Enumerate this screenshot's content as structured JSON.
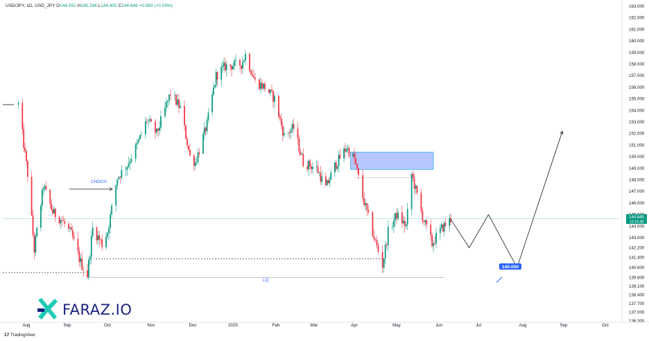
{
  "header": {
    "symbol": "USD/JPY, 1D, USD_JPY",
    "open_label": "O",
    "open": "144.551",
    "high_label": "H",
    "high": "145.294",
    "low_label": "L",
    "low": "144.402",
    "close_label": "C",
    "close": "144.649",
    "change": "+0.083 (+0.05%)"
  },
  "price_badge": {
    "price": "144.649",
    "countdown": "12:15:38"
  },
  "annotations": {
    "choch": "CHOCH",
    "lq": "LQ",
    "target": "140.000"
  },
  "logo": {
    "text": "FARAZ.IO"
  },
  "footer": {
    "brand": "TradingView"
  },
  "colors": {
    "up": "#089981",
    "down": "#f23645",
    "zone_fill": "#9fb3ff",
    "zone_border": "#38b6f2",
    "target_badge": "#2962ff",
    "logo_teal": "#1ec9b5",
    "logo_navy": "#1a237e"
  },
  "chart_data": {
    "type": "candlestick",
    "symbol": "USD/JPY",
    "timeframe": "1D",
    "x_ticks": [
      "Aug",
      "Sep",
      "Oct",
      "Nov",
      "Dec",
      "2025",
      "Feb",
      "Mar",
      "Apr",
      "May",
      "Jun",
      "Jul",
      "Aug",
      "Sep",
      "Oct"
    ],
    "y_ticks": [
      "163.000",
      "162.000",
      "161.000",
      "160.000",
      "159.000",
      "158.000",
      "157.000",
      "156.000",
      "155.000",
      "154.000",
      "153.000",
      "152.000",
      "151.000",
      "150.000",
      "149.000",
      "148.000",
      "147.000",
      "146.000",
      "145.000",
      "144.000",
      "143.000",
      "142.200",
      "141.400",
      "140.600",
      "139.800",
      "139.100",
      "138.400",
      "137.700",
      "137.000",
      "136.300"
    ],
    "ylim": [
      136.3,
      163.0
    ],
    "last_price": 144.649,
    "price_path": [
      [
        "2024-07-26",
        154.5
      ],
      [
        "2024-08-02",
        148.5
      ],
      [
        "2024-08-07",
        142.0
      ],
      [
        "2024-08-14",
        147.5
      ],
      [
        "2024-08-21",
        145.2
      ],
      [
        "2024-08-28",
        144.5
      ],
      [
        "2024-09-04",
        143.3
      ],
      [
        "2024-09-11",
        141.0
      ],
      [
        "2024-09-16",
        140.0
      ],
      [
        "2024-09-20",
        143.8
      ],
      [
        "2024-09-27",
        142.5
      ],
      [
        "2024-10-01",
        143.5
      ],
      [
        "2024-10-08",
        148.2
      ],
      [
        "2024-10-15",
        149.3
      ],
      [
        "2024-10-22",
        151.0
      ],
      [
        "2024-10-29",
        153.2
      ],
      [
        "2024-11-05",
        152.0
      ],
      [
        "2024-11-15",
        155.5
      ],
      [
        "2024-11-22",
        154.2
      ],
      [
        "2024-11-29",
        150.0
      ],
      [
        "2024-12-03",
        149.5
      ],
      [
        "2024-12-12",
        152.8
      ],
      [
        "2024-12-19",
        157.0
      ],
      [
        "2024-12-26",
        157.8
      ],
      [
        "2025-01-07",
        158.0
      ],
      [
        "2025-01-10",
        158.8
      ],
      [
        "2025-01-17",
        156.5
      ],
      [
        "2025-01-24",
        156.0
      ],
      [
        "2025-01-31",
        155.0
      ],
      [
        "2025-02-07",
        151.8
      ],
      [
        "2025-02-14",
        152.5
      ],
      [
        "2025-02-21",
        149.5
      ],
      [
        "2025-03-03",
        149.0
      ],
      [
        "2025-03-10",
        147.3
      ],
      [
        "2025-03-17",
        149.2
      ],
      [
        "2025-03-26",
        150.8
      ],
      [
        "2025-04-01",
        149.8
      ],
      [
        "2025-04-07",
        146.5
      ],
      [
        "2025-04-15",
        143.0
      ],
      [
        "2025-04-21",
        140.8
      ],
      [
        "2025-04-25",
        143.5
      ],
      [
        "2025-05-01",
        145.0
      ],
      [
        "2025-05-08",
        144.0
      ],
      [
        "2025-05-12",
        148.5
      ],
      [
        "2025-05-20",
        144.8
      ],
      [
        "2025-05-27",
        142.5
      ],
      [
        "2025-06-03",
        143.8
      ],
      [
        "2025-06-10",
        144.6
      ]
    ],
    "projection": [
      [
        "2025-06-10",
        144.6
      ],
      [
        "2025-06-24",
        142.2
      ],
      [
        "2025-07-08",
        145.0
      ],
      [
        "2025-07-28",
        140.6
      ],
      [
        "2025-08-31",
        152.2
      ]
    ],
    "levels": {
      "choch": 147.2,
      "liquidity_sweep": 141.3,
      "lq": 139.8,
      "left_dashed": 140.2,
      "early_marker": 154.5
    },
    "zones": [
      {
        "label": "",
        "from": "2025-03-29",
        "to": "2025-05-28",
        "low": 148.9,
        "high": 150.4
      }
    ],
    "target": 140.0
  }
}
